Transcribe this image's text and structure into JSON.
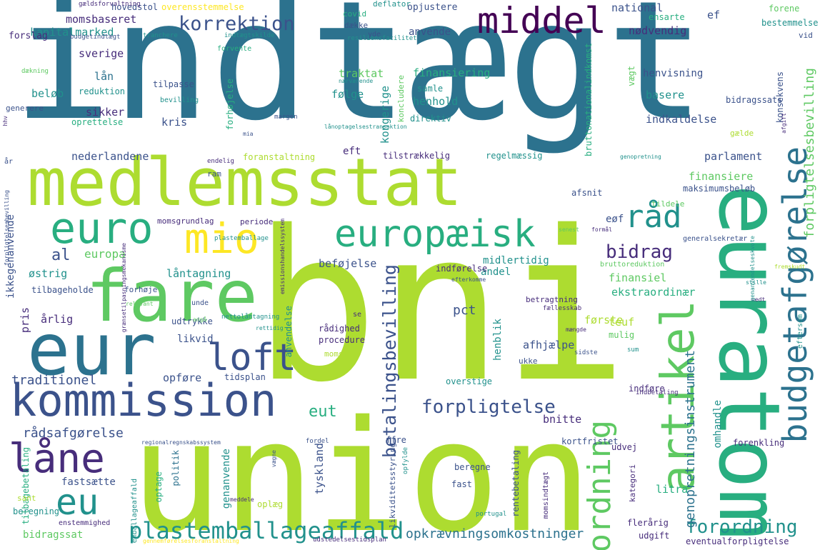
{
  "words": {
    "indtaegt": "indtægt",
    "bni": "bni",
    "union": "union",
    "medlemsstat": "medlemsstat",
    "euratom": "euratom",
    "fare": "fare",
    "eur": "eur",
    "kommission": "kommission",
    "artikel": "artikel",
    "budgetafgoerelse": "budgetafgørelse",
    "europaeisk": "europæisk",
    "euro": "euro",
    "mio": "mio",
    "middel": "middel",
    "raad": "råd",
    "loft": "loft",
    "laane": "låne",
    "eu": "eu",
    "ordning": "ordning",
    "plastemballageaffald": "plastemballageaffald",
    "forpligtelse": "forpligtelse",
    "forordning": "forordning",
    "betalingsbevilling": "betalingsbevilling",
    "korrektion": "korrektion",
    "bidrag": "bidrag",
    "forpligtelsesbevilling": "forpligtelsesbevilling",
    "eut": "eut",
    "al": "al",
    "genopretningsinstrument": "genopretningsinstrument",
    "opkraevningsomkostninger": "opkrævningsomkostninger",
    "raadsafgoerelse": "rådsafgørelse",
    "traditionel": "traditionel",
    "europa": "europa",
    "kapitalmarked": "kapitalmarked",
    "momsbaseret": "momsbaseret",
    "sverige": "sverige",
    "laan": "lån",
    "beloeb": "beløb",
    "sikker": "sikker",
    "kris": "kris",
    "nederlandene": "nederlandene",
    "oestrig": "østrig",
    "aarlig": "årlig",
    "pris": "pris",
    "ikkegenanvende": "ikkegenanvende",
    "tilbageholde": "tilbageholde",
    "fastsaette": "fastsætte",
    "bidragssat": "bidragssat",
    "beregning": "beregning",
    "likvid": "likvid",
    "opfoere": "opføre",
    "udtrykke": "udtrykke",
    "tidsplan": "tidsplan",
    "laantagning": "låntagning",
    "befoejelse": "beføjelse",
    "andel": "andel",
    "midlertidig": "midlertidig",
    "tyskland": "tyskland",
    "genanvende": "genanvende",
    "anvendelse": "anvendelse",
    "pct": "pct",
    "raadighed": "rådighed",
    "procedure": "procedure",
    "moms": "moms",
    "afhjaelpe": "afhjælpe",
    "henblik": "henblik",
    "ekstraordinaer": "ekstraordinær",
    "finansiel": "finansiel",
    "foerste": "første",
    "teuf": "teuf",
    "mulig": "mulig",
    "bnitte": "bnitte",
    "kortfristet": "kortfristet",
    "ffre": "ffre",
    "omhandle": "omhandle",
    "indfoere": "indføre",
    "forenkling": "forenkling",
    "litra": "litra",
    "flereaarig": "flerårig",
    "udgift": "udgift",
    "eventualforpligtelse": "eventualforpligtelse",
    "kategori": "kategori",
    "udvej": "udvej",
    "beregne": "beregne",
    "fast": "fast",
    "rentebetaling": "rentebetaling",
    "oplaeg": "oplæg",
    "optage": "optage",
    "politik": "politik",
    "tilbagebetaling": "tilbagebetaling",
    "sant": "sant",
    "finansiering": "finansiering",
    "henhold": "henhold",
    "direktiv": "direktiv",
    "koncludere": "koncludere",
    "kongerige": "kongerige",
    "foelge": "følge",
    "traktat": "traktat",
    "samle": "samle",
    "anvende": "anvende",
    "opjustere": "opjustere",
    "deflator": "deflator",
    "covid": "covid",
    "daekke": "dække",
    "yde": "yde",
    "national": "national",
    "ensarte": "ensarte",
    "ef": "ef",
    "noedvendig": "nødvendig",
    "forene": "forene",
    "bestemmelse": "bestemmelse",
    "vid": "vid",
    "konsekvens": "konsekvens",
    "bidragssats": "bidragssats",
    "henvisning": "henvisning",
    "vaegt": "vægt",
    "basere": "basere",
    "indkaldelse": "indkaldelse",
    "galde": "gælde",
    "parlament": "parlament",
    "finansiere": "finansiere",
    "maksimumsbeloeb": "maksimumsbeløb",
    "afsnit": "afsnit",
    "tildele": "tildele",
    "eoef": "eøf",
    "generalsekretaer": "generalsekretær",
    "bruttoreduktion": "bruttoreduktion",
    "forslag": "forslag",
    "hovedstol": "hovedstol",
    "overensstemmelse": "overensstemmelse",
    "gaeldsforvaltning": "gældsforvaltning",
    "budgetindtaegt": "budgetindtægt",
    "tranchere": "tranchere",
    "indtaegtskilde": "indtægtskilde",
    "resiliensfacilitet": "resiliensfacilitet",
    "forvente": "forvente",
    "daekning": "dækning",
    "tilpasse": "tilpasse",
    "reduktion": "reduktion",
    "bevilling": "bevilling",
    "generere": "generere",
    "oprettelse": "oprettelse",
    "margen": "margen",
    "endelig": "endelig",
    "aar": "år",
    "eft": "eft",
    "tilstraekkelig": "tilstrækkelig",
    "regelmaessig": "regelmæssig",
    "foranstaltning": "foranstaltning",
    "ram": "ram",
    "momsgrundlag": "momsgrundlag",
    "periode": "periode",
    "plastemballage": "plastemballage",
    "forhoejelse": "forhøjelse",
    "forhoeje": "forhøje",
    "unde": "unde",
    "indfoerelse": "indførelse",
    "betragtning": "betragtning",
    "faellesskab": "fællesskab",
    "se": "se",
    "overstige": "overstige",
    "ukke": "ukke",
    "nettolaantagning": "nettolåntagning",
    "relevant": "relevant",
    "angaa": "angå",
    "rettidig": "rettidig",
    "maengde": "mængde",
    "sidste": "sidste",
    "efterkomme": "efterkomme",
    "stille": "stille",
    "nedt": "nedt",
    "eftersom": "eftersom",
    "sum": "sum",
    "indbetaling": "indbetaling",
    "udstedelsestidsplan": "udstedelsestidsplan",
    "portugal": "portugal",
    "momsindtaegt": "momsindtægt",
    "likviditetsstyring": "likviditetsstyring",
    "opfylde": "opfylde",
    "fordel": "fordel",
    "regionalregnskabssystem": "regionalregnskabssystem",
    "meddele": "meddele",
    "enstemmighed": "enstemmighed",
    "emballageaffald": "emballageaffald",
    "vaegne": "vægne",
    "bruttonationalindkomst": "bruttonationalindkomst",
    "mia": "mia",
    "senest": "senest",
    "formaal": "formål",
    "genopretning": "genopretning",
    "afgift": "afgift",
    "hhv": "hhv",
    "naervaerende": "nærværende",
    "laanoptagelsestransaktion": "lånoptagelsestransaktion",
    "forpligtelsesbevilling_small": "forpligtelsesbevilling",
    "graensetilpasningsmekanisme": "grænsetilpasningsmekanisme",
    "emissionshandelssystem": "emissionshandelssystem",
    "genanvendelseskvote": "genanvendelseskvote",
    "gennemfoerelsesforanstaltning": "gennemførelsesforanstaltning",
    "fremskudt": "fremskudt"
  },
  "colors": {
    "dark_purple": "#440154",
    "purple": "#472d7b",
    "indigo": "#3b528b",
    "blue": "#2c728e",
    "teal": "#21918c",
    "green_teal": "#28ae80",
    "green": "#5ec962",
    "lime": "#addc30",
    "yellow": "#fde725"
  }
}
